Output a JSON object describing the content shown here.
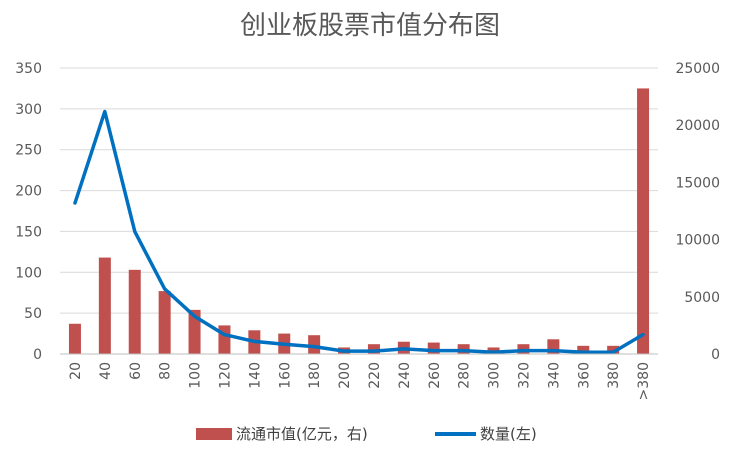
{
  "chart_data": {
    "type": "bar",
    "title": "创业板股票市值分布图",
    "categories": [
      "20",
      "40",
      "60",
      "80",
      "100",
      "120",
      "140",
      "160",
      "180",
      "200",
      "220",
      "240",
      "260",
      "280",
      "300",
      "320",
      "340",
      "360",
      "380",
      ">380"
    ],
    "series": [
      {
        "name": "流通市值(亿元，右)",
        "type": "bar",
        "axis": "left",
        "color": "#C0504D",
        "values": [
          37,
          118,
          103,
          77,
          54,
          35,
          29,
          25,
          23,
          8,
          12,
          15,
          14,
          12,
          8,
          12,
          18,
          10,
          10,
          325
        ]
      },
      {
        "name": "数量(左)",
        "type": "line",
        "axis": "right",
        "color": "#0070C0",
        "values": [
          13200,
          21200,
          10700,
          5700,
          3300,
          1700,
          1100,
          850,
          650,
          250,
          250,
          450,
          300,
          300,
          150,
          300,
          300,
          150,
          150,
          1700
        ]
      }
    ],
    "left_axis": {
      "min": 0,
      "max": 350,
      "ticks": [
        0,
        50,
        100,
        150,
        200,
        250,
        300,
        350
      ]
    },
    "right_axis": {
      "min": 0,
      "max": 25000,
      "ticks": [
        0,
        5000,
        10000,
        15000,
        20000,
        25000
      ]
    },
    "grid": true,
    "legend_position": "bottom"
  }
}
